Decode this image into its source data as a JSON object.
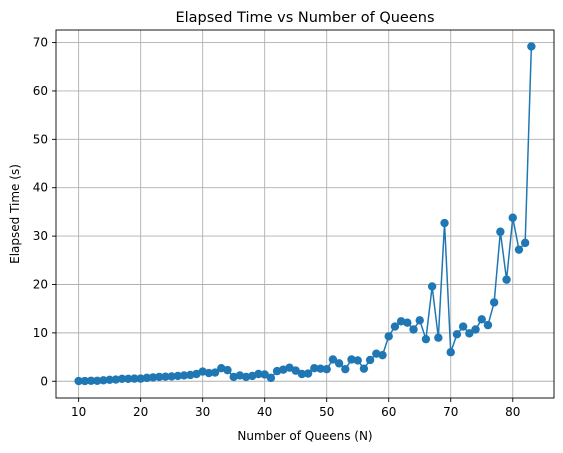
{
  "chart_data": {
    "type": "line",
    "title": "Elapsed Time vs Number of Queens",
    "xlabel": "Number of Queens (N)",
    "ylabel": "Elapsed Time (s)",
    "xlim": [
      6.35,
      86.65
    ],
    "ylim": [
      -3.46,
      72.6
    ],
    "xticks": [
      10,
      20,
      30,
      40,
      50,
      60,
      70,
      80
    ],
    "yticks": [
      0,
      10,
      20,
      30,
      40,
      50,
      60,
      70
    ],
    "grid": true,
    "series_color": "#1f77b4",
    "x": [
      10,
      11,
      12,
      13,
      14,
      15,
      16,
      17,
      18,
      19,
      20,
      21,
      22,
      23,
      24,
      25,
      26,
      27,
      28,
      29,
      30,
      31,
      32,
      33,
      34,
      35,
      36,
      37,
      38,
      39,
      40,
      41,
      42,
      43,
      44,
      45,
      46,
      47,
      48,
      49,
      50,
      51,
      52,
      53,
      54,
      55,
      56,
      57,
      58,
      59,
      60,
      61,
      62,
      63,
      64,
      65,
      66,
      67,
      68,
      69,
      70,
      71,
      72,
      73,
      74,
      75,
      76,
      77,
      78,
      79,
      80,
      81,
      82,
      83
    ],
    "y": [
      0.05,
      0.05,
      0.1,
      0.1,
      0.2,
      0.3,
      0.35,
      0.5,
      0.5,
      0.55,
      0.55,
      0.7,
      0.8,
      0.9,
      0.95,
      1.0,
      1.1,
      1.2,
      1.3,
      1.5,
      2.0,
      1.7,
      1.8,
      2.7,
      2.3,
      0.9,
      1.2,
      0.9,
      1.1,
      1.5,
      1.4,
      0.7,
      2.1,
      2.4,
      2.8,
      2.2,
      1.5,
      1.6,
      2.7,
      2.6,
      2.5,
      4.5,
      3.7,
      2.5,
      4.5,
      4.3,
      2.6,
      4.4,
      5.7,
      5.4,
      9.3,
      11.3,
      12.4,
      12.1,
      10.7,
      12.6,
      8.7,
      19.6,
      9.0,
      32.7,
      6.0,
      9.7,
      11.3,
      9.9,
      10.7,
      12.8,
      11.6,
      16.3,
      30.9,
      21.0,
      33.8,
      27.2,
      28.6,
      69.2
    ]
  }
}
